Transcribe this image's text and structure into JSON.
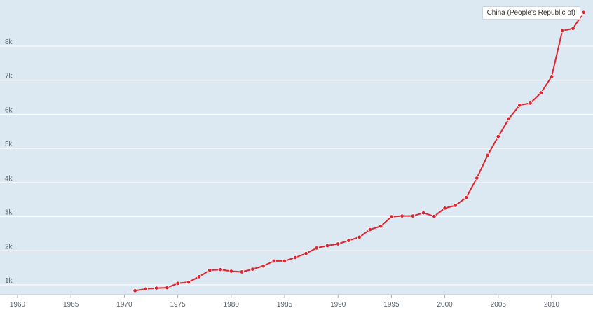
{
  "chart_data": {
    "type": "line",
    "title": "",
    "xlabel": "",
    "ylabel": "",
    "xlim": [
      1960,
      2013
    ],
    "ylim": [
      700,
      9100
    ],
    "x_ticks": [
      1960,
      1965,
      1970,
      1975,
      1980,
      1985,
      1990,
      1995,
      2000,
      2005,
      2010
    ],
    "y_ticks": [
      {
        "value": 1000,
        "label": "1k"
      },
      {
        "value": 2000,
        "label": "2k"
      },
      {
        "value": 3000,
        "label": "3k"
      },
      {
        "value": 4000,
        "label": "4k"
      },
      {
        "value": 5000,
        "label": "5k"
      },
      {
        "value": 6000,
        "label": "6k"
      },
      {
        "value": 7000,
        "label": "7k"
      },
      {
        "value": 8000,
        "label": "8k"
      }
    ],
    "grid": true,
    "legend_position": "top-right",
    "colors": {
      "background": "#dde9f2",
      "line": "#e0242f",
      "grid": "#ffffff"
    },
    "series": [
      {
        "name": "China (People's Republic of)",
        "x": [
          1971,
          1972,
          1973,
          1974,
          1975,
          1976,
          1977,
          1978,
          1979,
          1980,
          1981,
          1982,
          1983,
          1984,
          1985,
          1986,
          1987,
          1988,
          1989,
          1990,
          1991,
          1992,
          1993,
          1994,
          1995,
          1996,
          1997,
          1998,
          1999,
          2000,
          2001,
          2002,
          2003,
          2004,
          2005,
          2006,
          2007,
          2008,
          2009,
          2010,
          2011,
          2012,
          2013
        ],
        "values": [
          830,
          880,
          905,
          915,
          1045,
          1080,
          1240,
          1430,
          1450,
          1400,
          1380,
          1460,
          1550,
          1700,
          1700,
          1800,
          1920,
          2080,
          2150,
          2200,
          2300,
          2400,
          2620,
          2720,
          3000,
          3020,
          3020,
          3110,
          3010,
          3250,
          3330,
          3560,
          4130,
          4800,
          5350,
          5870,
          6270,
          6330,
          6630,
          7110,
          8450,
          8520,
          8990
        ]
      }
    ]
  }
}
